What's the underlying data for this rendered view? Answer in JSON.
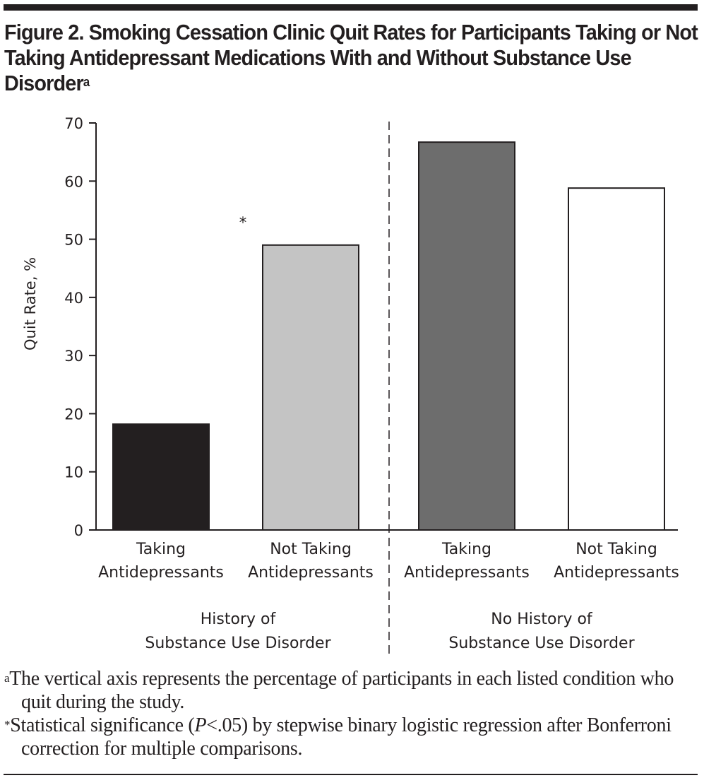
{
  "figure": {
    "title": "Figure 2. Smoking Cessation Clinic Quit Rates for Participants Taking or Not Taking Antidepressant Medications With and Without Substance Use Disorder",
    "title_superscript": "a",
    "footnotes": [
      {
        "marker": "a",
        "text": "The vertical axis represents the percentage of participants in each listed condition who quit during the study."
      },
      {
        "marker": "*",
        "text_before": "Statistical significance (",
        "italic": "P",
        "text_after": "<.05) by stepwise binary logistic regression after Bonferroni correction for multiple comparisons."
      }
    ]
  },
  "chart_data": {
    "type": "bar",
    "title": "Figure 2. Smoking Cessation Clinic Quit Rates for Participants Taking or Not Taking Antidepressant Medications With and Without Substance Use Disorder",
    "xlabel": "",
    "ylabel": "Quit Rate, %",
    "ylim": [
      0,
      70
    ],
    "yticks": [
      0,
      10,
      20,
      30,
      40,
      50,
      60,
      70
    ],
    "grid": false,
    "legend": "none",
    "categories": [
      {
        "line1": "Taking",
        "line2": "Antidepressants",
        "group": "History of Substance Use Disorder"
      },
      {
        "line1": "Not Taking",
        "line2": "Antidepressants",
        "group": "History of Substance Use Disorder"
      },
      {
        "line1": "Taking",
        "line2": "Antidepressants",
        "group": "No History of Substance Use Disorder"
      },
      {
        "line1": "Not Taking",
        "line2": "Antidepressants",
        "group": "No History of Substance Use Disorder"
      }
    ],
    "values": [
      18.2,
      49.0,
      66.7,
      58.8
    ],
    "bar_colors": [
      "#231f20",
      "#c4c4c4",
      "#6d6d6d",
      "#ffffff"
    ],
    "groups": [
      {
        "line1": "History of",
        "line2": "Substance Use Disorder"
      },
      {
        "line1": "No History of",
        "line2": "Substance Use Disorder"
      }
    ],
    "annotations": [
      {
        "text": "*",
        "note": "significance marker near Not Taking Antidepressants (History of Substance Use Disorder)",
        "category_index": 1
      }
    ]
  }
}
